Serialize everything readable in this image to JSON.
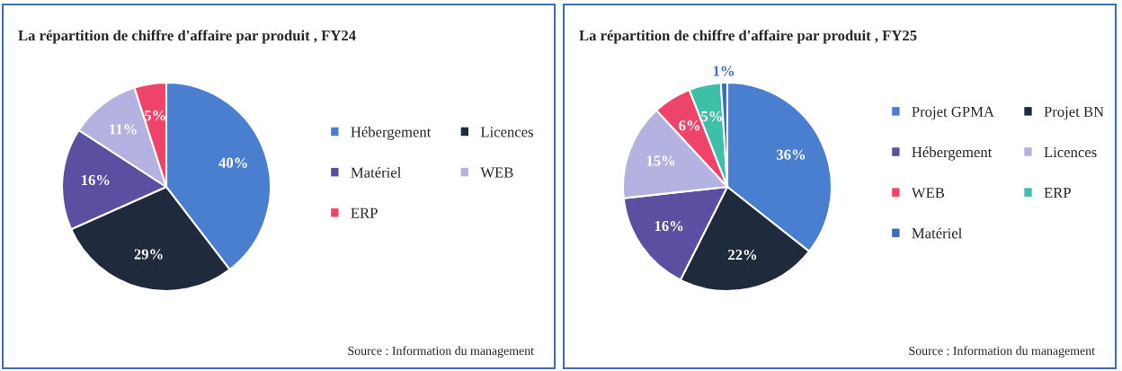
{
  "chart_data": [
    {
      "type": "pie",
      "title": "La répartition de chiffre d'affaire par produit , FY24",
      "categories": [
        "Hébergement",
        "Licences",
        "Matériel",
        "WEB",
        "ERP"
      ],
      "values": [
        40,
        29,
        16,
        11,
        5
      ],
      "colors": [
        "#4a7fcf",
        "#1f2a3c",
        "#5a4fa0",
        "#b4b2e0",
        "#f0436a"
      ],
      "value_labels": [
        "40%",
        "29%",
        "16%",
        "11%",
        "5%"
      ],
      "legend": "right",
      "annotations": [
        "Source : Information du management"
      ]
    },
    {
      "type": "pie",
      "title": "La répartition de chiffre d'affaire par produit , FY25",
      "categories": [
        "Projet GPMA",
        "Projet BN",
        "Hébergement",
        "Licences",
        "WEB",
        "ERP",
        "Matériel"
      ],
      "values": [
        36,
        22,
        16,
        15,
        6,
        5,
        1
      ],
      "colors": [
        "#4a7fcf",
        "#1f2a3c",
        "#5a4fa0",
        "#b4b2e0",
        "#f0436a",
        "#3dbfa8",
        "#3a6fc0"
      ],
      "value_labels": [
        "36%",
        "22%",
        "16%",
        "15%",
        "6%",
        "5%",
        "1%"
      ],
      "legend": "right",
      "annotations": [
        "Source : Information du management"
      ]
    }
  ]
}
